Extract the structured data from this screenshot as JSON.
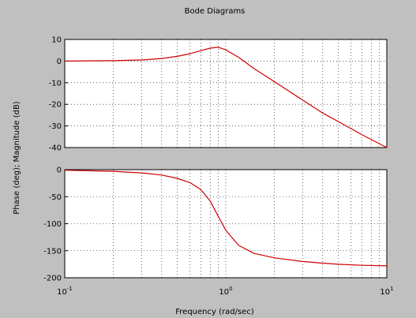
{
  "chart_data": {
    "type": "line",
    "title": "Bode Diagrams",
    "xlabel": "Frequency (rad/sec)",
    "ylabel": "Phase (deg); Magnitude (dB)",
    "x_scale": "log",
    "xlim": [
      0.1,
      10
    ],
    "x_tick_labels": [
      {
        "base": "10",
        "exp": "-1"
      },
      {
        "base": "10",
        "exp": "0"
      },
      {
        "base": "10",
        "exp": "1"
      }
    ],
    "grid": true,
    "line_color": "#cc0000",
    "subplots": [
      {
        "name": "magnitude",
        "ylim": [
          -40,
          10
        ],
        "yticks": [
          10,
          0,
          -10,
          -20,
          -30,
          -40
        ],
        "series": [
          {
            "x": [
              0.1,
              0.2,
              0.3,
              0.4,
              0.5,
              0.6,
              0.7,
              0.8,
              0.9,
              1.0,
              1.2,
              1.5,
              2,
              3,
              4,
              5,
              7,
              10
            ],
            "y": [
              0.0,
              0.2,
              0.5,
              1.2,
              2.2,
              3.4,
              4.8,
              6.0,
              6.4,
              5.2,
              1.8,
              -3.5,
              -9.5,
              -18.0,
              -24.0,
              -28.0,
              -34.0,
              -40.0
            ]
          }
        ]
      },
      {
        "name": "phase",
        "ylim": [
          -200,
          0
        ],
        "yticks": [
          0,
          -50,
          -100,
          -150,
          -200
        ],
        "series": [
          {
            "x": [
              0.1,
              0.2,
              0.3,
              0.4,
              0.5,
              0.6,
              0.7,
              0.8,
              0.9,
              1.0,
              1.2,
              1.5,
              2,
              3,
              4,
              5,
              7,
              10
            ],
            "y": [
              -1,
              -3,
              -6,
              -10,
              -16,
              -24,
              -37,
              -58,
              -87,
              -112,
              -140,
              -155,
              -163,
              -170,
              -173,
              -175,
              -177,
              -178
            ]
          }
        ]
      }
    ]
  }
}
